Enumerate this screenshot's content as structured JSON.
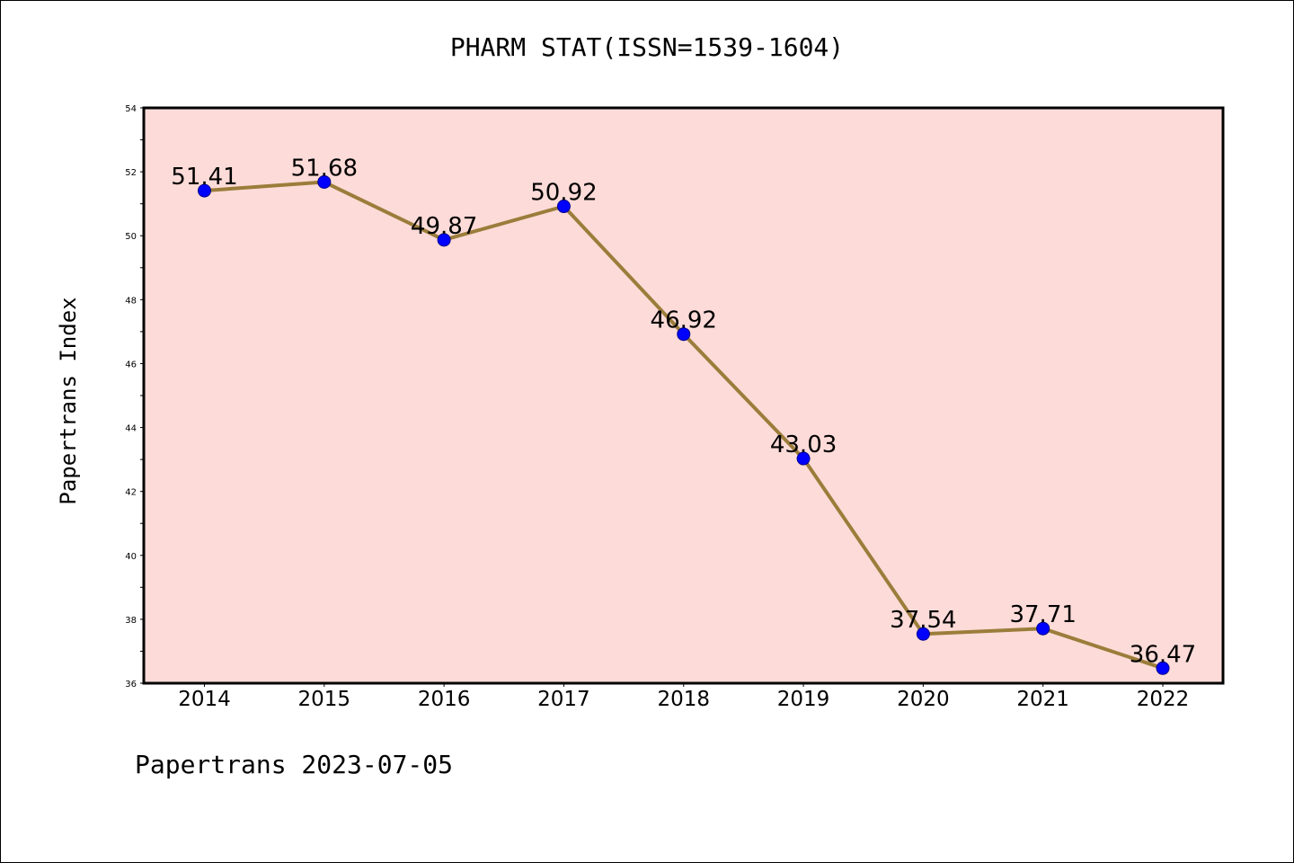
{
  "chart_data": {
    "type": "line",
    "title": "PHARM STAT(ISSN=1539-1604)",
    "xlabel": "",
    "ylabel": "Papertrans Index",
    "categories": [
      "2014",
      "2015",
      "2016",
      "2017",
      "2018",
      "2019",
      "2020",
      "2021",
      "2022"
    ],
    "series": [
      {
        "values": [
          51.41,
          51.68,
          49.87,
          50.92,
          46.92,
          43.03,
          37.54,
          37.71,
          36.47
        ],
        "labels": [
          "51.41",
          "51.68",
          "49.87",
          "50.92",
          "46.92",
          "43.03",
          "37.54",
          "37.71",
          "36.47"
        ],
        "line_color": "#9b7d3b",
        "marker_color": "#0000ff"
      }
    ],
    "ylim": [
      36,
      54
    ],
    "y_ticks": [
      "36",
      "38",
      "40",
      "42",
      "44",
      "46",
      "48",
      "50",
      "52",
      "54"
    ],
    "plot_background": "#fddbd8",
    "grid": false,
    "legend": "none"
  },
  "footer": {
    "note": "Papertrans 2023-07-05"
  }
}
